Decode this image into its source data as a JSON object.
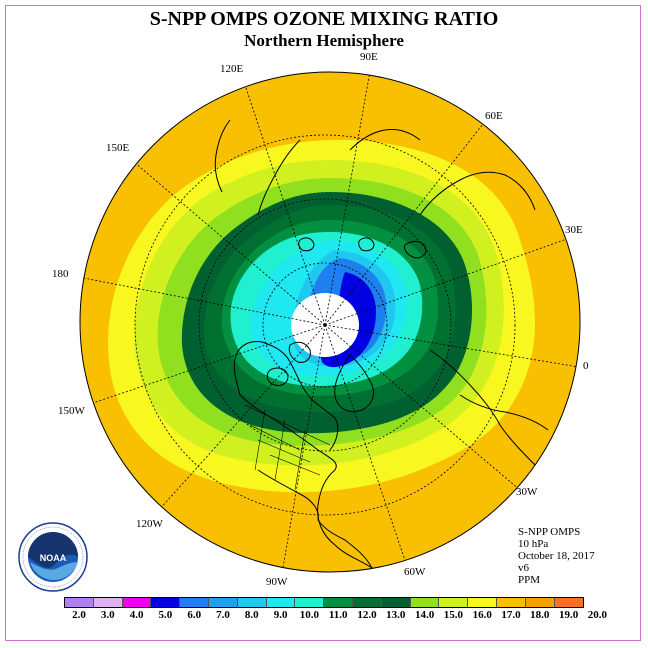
{
  "title": "S-NPP OMPS OZONE MIXING RATIO",
  "subtitle": "Northern Hemisphere",
  "longitude_labels": {
    "e90": "90E",
    "e60": "60E",
    "e30": "30E",
    "e0": "0",
    "w30": "30W",
    "w60": "60W",
    "w90": "90W",
    "w120": "120W",
    "w150": "150W",
    "e180": "180",
    "e150": "150E",
    "e120": "120E"
  },
  "info": {
    "instrument": "S-NPP OMPS",
    "level": "10 hPa",
    "date": "October 18, 2017",
    "version": "v6",
    "units": "PPM"
  },
  "logo": {
    "name": "NOAA",
    "ring_text": "NATIONAL OCEANIC AND ATMOSPHERIC ADMINISTRATION · U.S. DEPARTMENT OF COMMERCE"
  },
  "colorbar": {
    "colors": [
      "#b080f0",
      "#e0b0f0",
      "#f000f0",
      "#0000e0",
      "#1e80f0",
      "#20a0f0",
      "#20c8f0",
      "#20e8f0",
      "#20f0d0",
      "#009040",
      "#007030",
      "#006030",
      "#90e020",
      "#d0f020",
      "#f8f820",
      "#f8c000",
      "#f8a000",
      "#f87020",
      "#f80000",
      "#e00000",
      "#905030"
    ],
    "ticks": [
      "2.0",
      "3.0",
      "4.0",
      "5.0",
      "6.0",
      "7.0",
      "8.0",
      "9.0",
      "10.0",
      "11.0",
      "12.0",
      "13.0",
      "14.0",
      "15.0",
      "16.0",
      "17.0",
      "18.0",
      "19.0",
      "20.0"
    ]
  }
}
